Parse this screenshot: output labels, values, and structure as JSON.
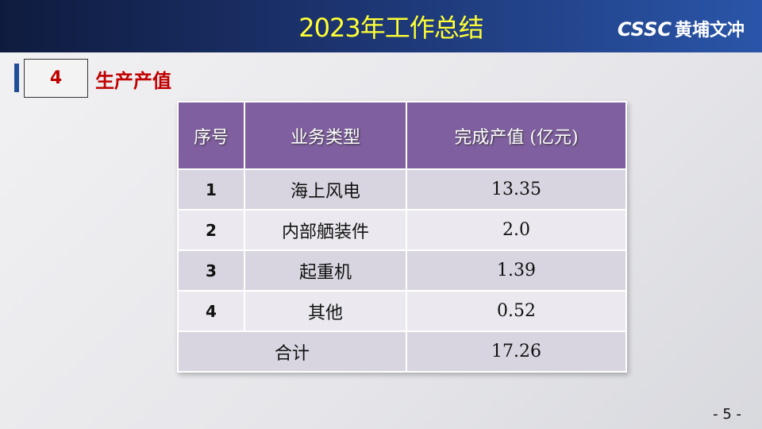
{
  "header": {
    "title": "2023年工作总结",
    "logo_latin": "CSSC",
    "logo_cn": "黄埔文冲"
  },
  "section": {
    "number": "4",
    "title": "生产产值"
  },
  "table": {
    "headers": [
      "序号",
      "业务类型",
      "完成产值 (亿元)"
    ],
    "rows": [
      [
        "1",
        "海上风电",
        "13.35"
      ],
      [
        "2",
        "内部舾装件",
        "2.0"
      ],
      [
        "3",
        "起重机",
        "1.39"
      ],
      [
        "4",
        "其他",
        "0.52"
      ]
    ],
    "total": {
      "label": "合计",
      "value": "17.26"
    }
  },
  "page_number": "- 5 -"
}
